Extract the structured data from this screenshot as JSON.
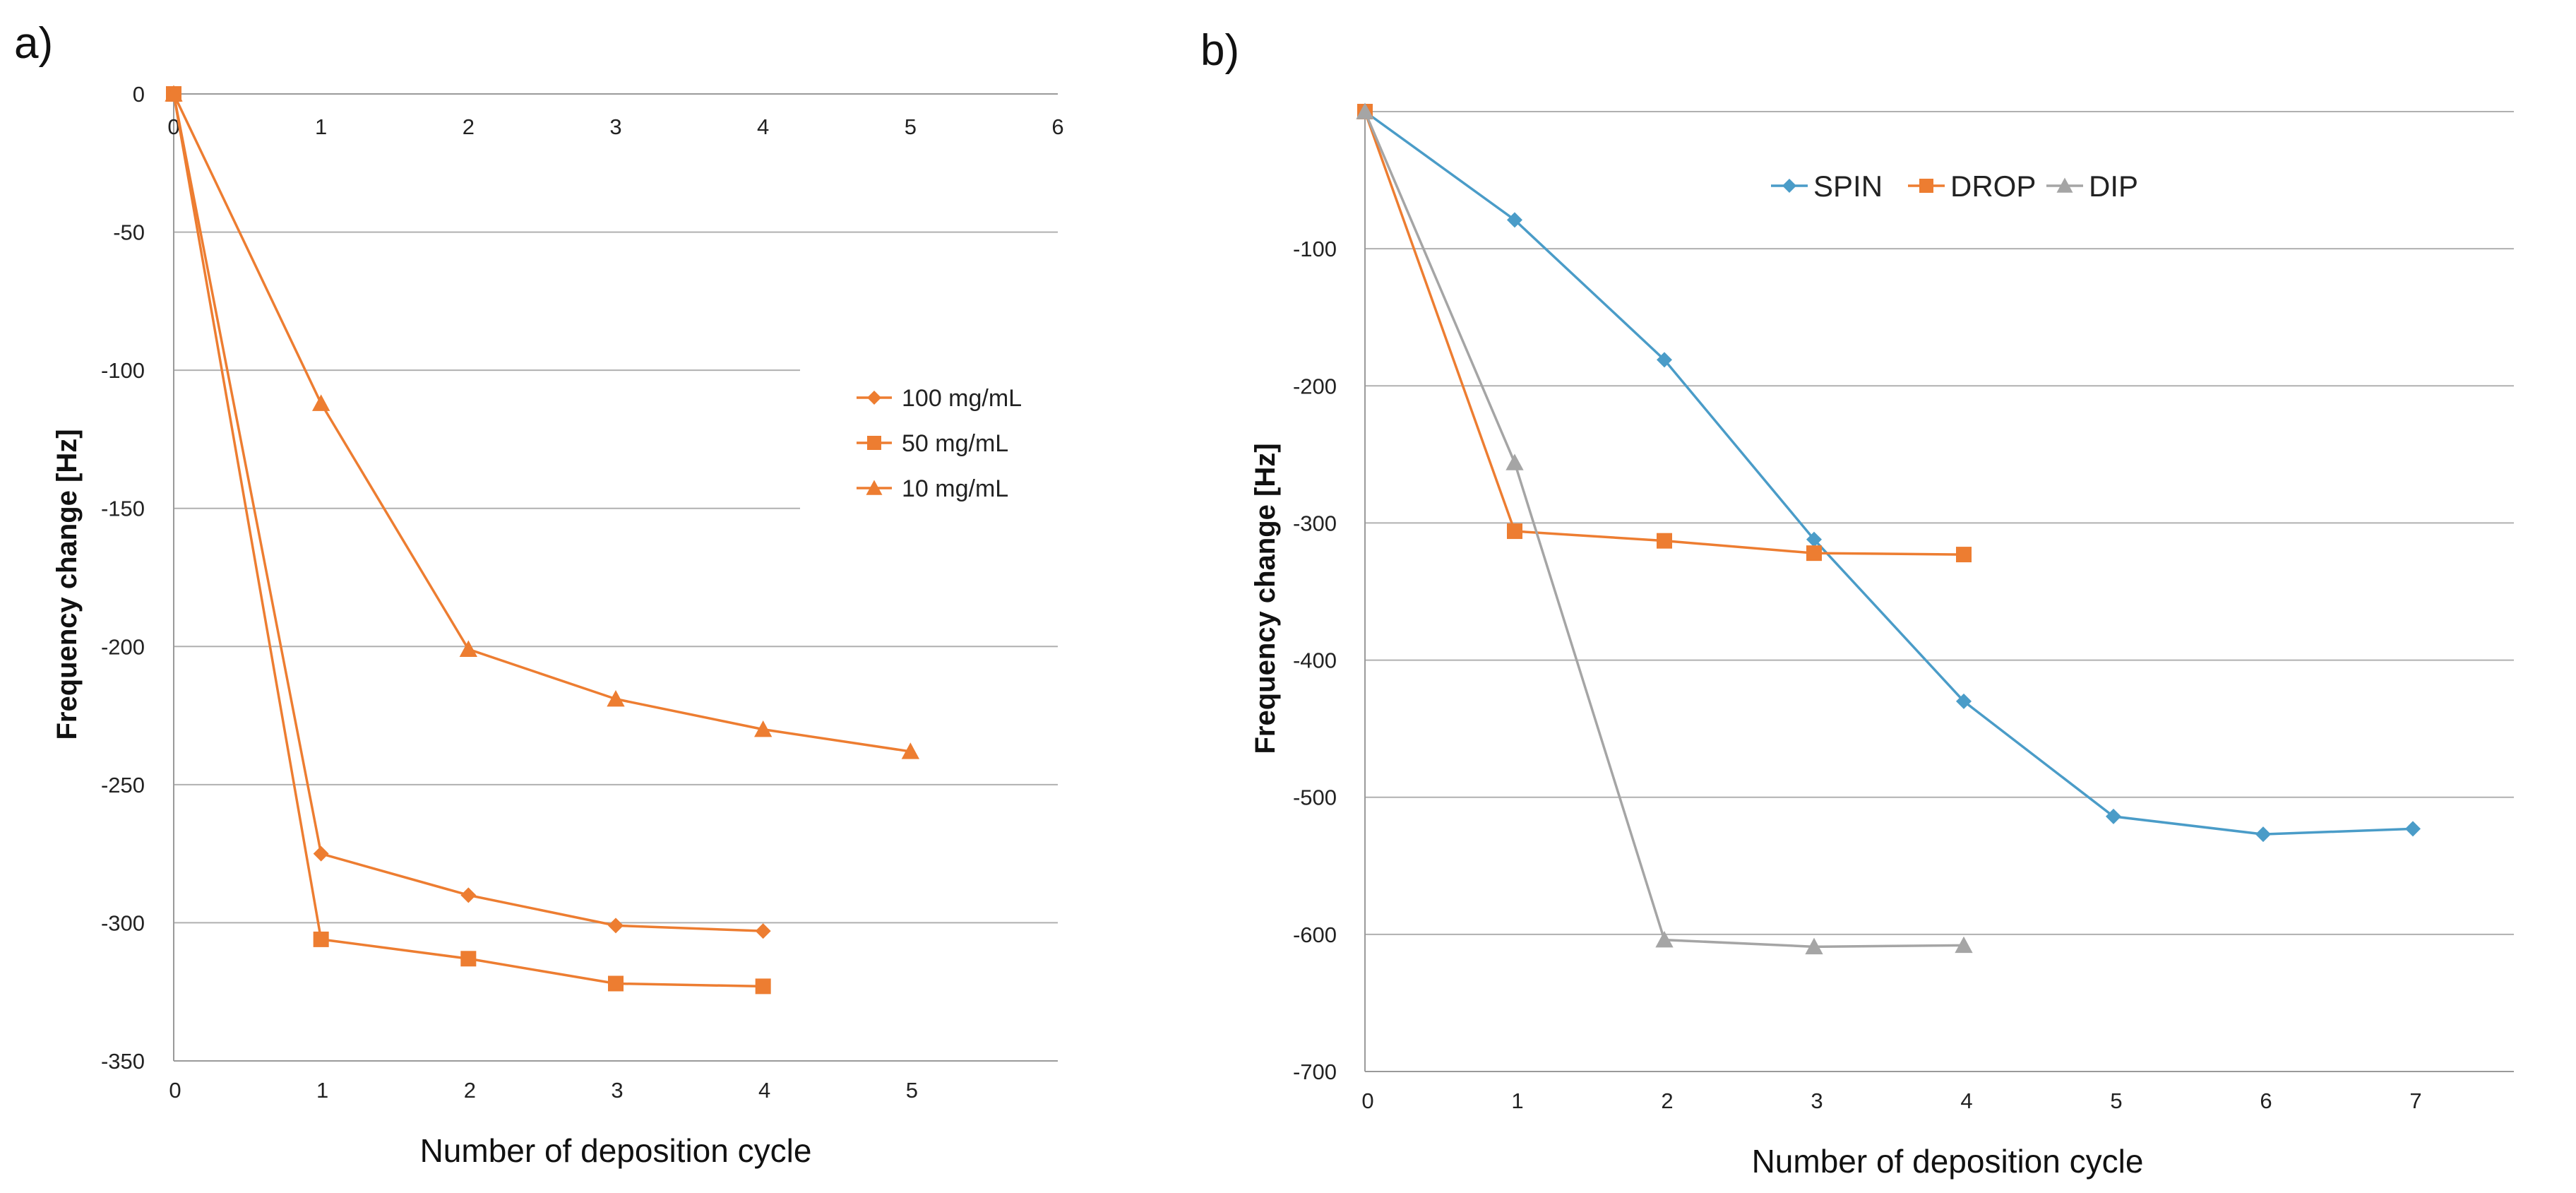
{
  "chart_data": [
    {
      "type": "line",
      "panel_label": "a)",
      "xlabel": "Number of deposition cycle",
      "ylabel": "Frequency change [Hz]",
      "ylim": [
        -350,
        0
      ],
      "yticks": [
        0,
        -50,
        -100,
        -150,
        -200,
        -250,
        -300,
        -350
      ],
      "xlim": [
        0,
        6
      ],
      "xticks_top": [
        0,
        1,
        2,
        3,
        4,
        5,
        6
      ],
      "xticks_bottom": [
        0,
        1,
        2,
        3,
        4,
        5
      ],
      "grid": true,
      "legend": "right",
      "series": [
        {
          "name": "100 mg/mL",
          "marker": "diamond",
          "color": "#ED7D31",
          "x": [
            0,
            1,
            2,
            3,
            4
          ],
          "y": [
            0,
            -275,
            -290,
            -301,
            -303
          ]
        },
        {
          "name": "50 mg/mL",
          "marker": "square",
          "color": "#ED7D31",
          "x": [
            0,
            1,
            2,
            3,
            4
          ],
          "y": [
            0,
            -306,
            -313,
            -322,
            -323
          ]
        },
        {
          "name": "10 mg/mL",
          "marker": "triangle",
          "color": "#ED7D31",
          "x": [
            0,
            1,
            2,
            3,
            4,
            5
          ],
          "y": [
            0,
            -112,
            -201,
            -219,
            -230,
            -238
          ]
        }
      ]
    },
    {
      "type": "line",
      "panel_label": "b)",
      "xlabel": "Number of deposition cycle",
      "ylabel": "Frequency change [Hz]",
      "ylim": [
        -700,
        0
      ],
      "yticks": [
        -100,
        -200,
        -300,
        -400,
        -500,
        -600,
        -700
      ],
      "xlim": [
        0,
        7.8
      ],
      "xticks": [
        0,
        1,
        2,
        3,
        4,
        5,
        6,
        7
      ],
      "grid": true,
      "legend": "top",
      "series": [
        {
          "name": "SPIN",
          "marker": "diamond",
          "color": "#4A9CC8",
          "x": [
            0,
            1,
            2,
            3,
            4,
            5,
            6,
            7
          ],
          "y": [
            0,
            -79,
            -181,
            -312,
            -430,
            -514,
            -527,
            -523
          ]
        },
        {
          "name": "DROP",
          "marker": "square",
          "color": "#ED7D31",
          "x": [
            0,
            1,
            2,
            3,
            4
          ],
          "y": [
            0,
            -306,
            -313,
            -322,
            -323
          ]
        },
        {
          "name": "DIP",
          "marker": "triangle",
          "color": "#A5A5A5",
          "x": [
            0,
            1,
            2,
            3,
            4
          ],
          "y": [
            0,
            -256,
            -604,
            -609,
            -608
          ]
        }
      ]
    }
  ]
}
